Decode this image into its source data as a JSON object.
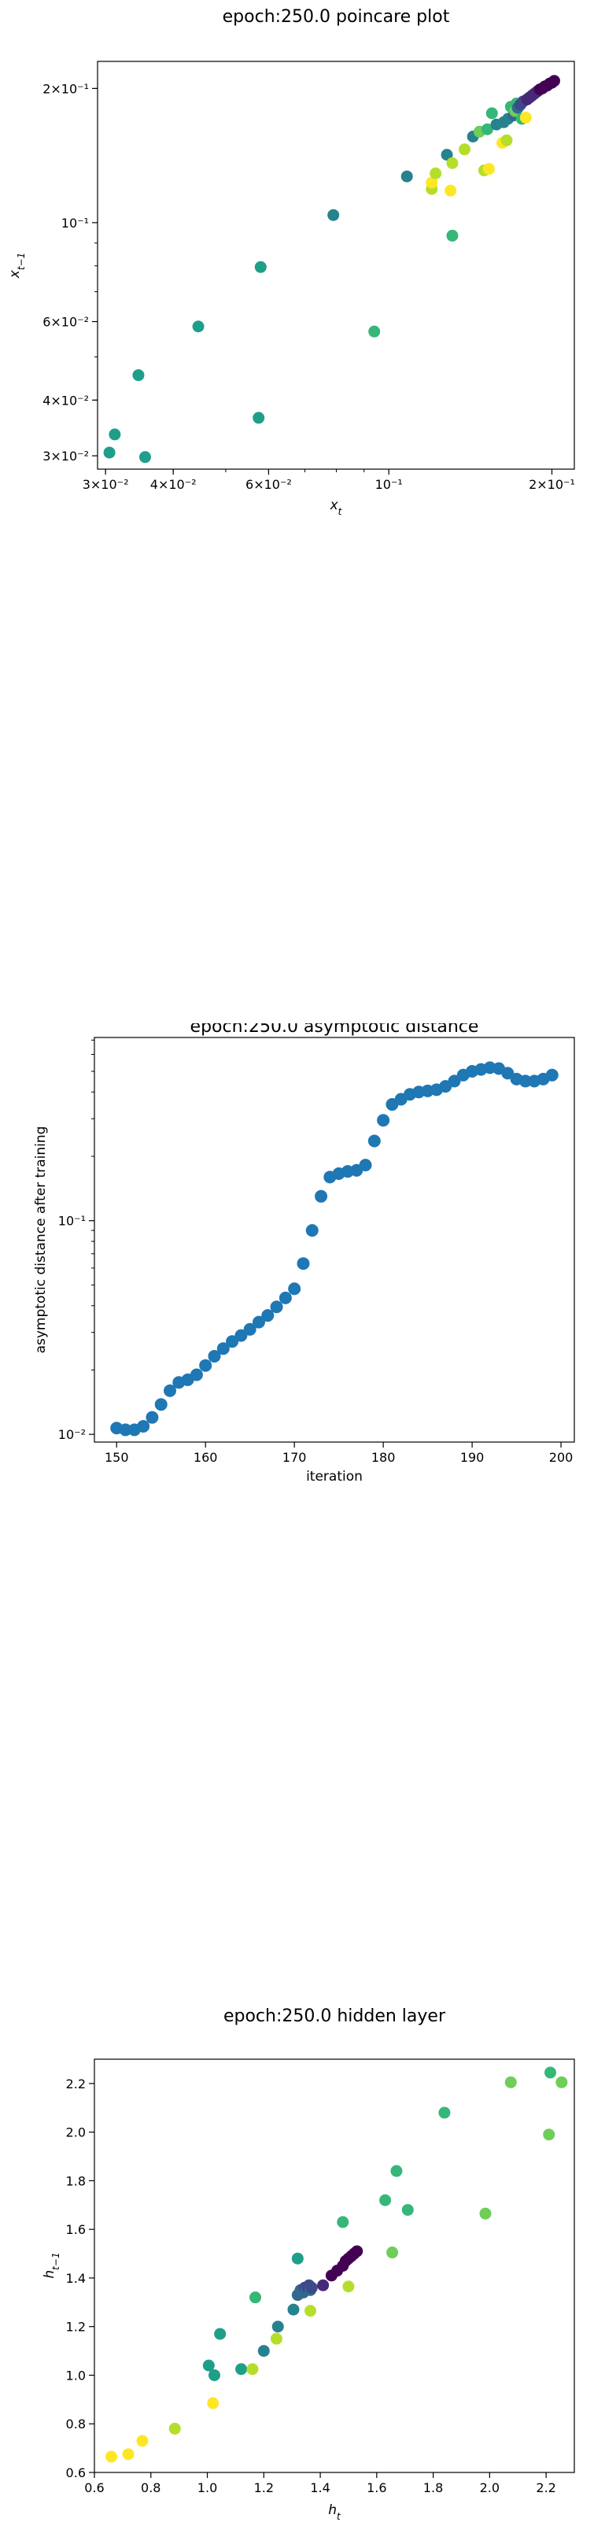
{
  "chart_data": [
    {
      "type": "scatter",
      "title": "epoch:250.0 poincare plot",
      "xlabel": "x_t",
      "ylabel": "x_{t-1}",
      "xscale": "log",
      "yscale": "log",
      "xlim": [
        0.029,
        0.22
      ],
      "ylim": [
        0.028,
        0.23
      ],
      "grid": false,
      "xtick_values": [
        0.03,
        0.04,
        0.06,
        0.1,
        0.2
      ],
      "xtick_labels": [
        "3×10⁻²",
        "4×10⁻²",
        "6×10⁻²",
        "10⁻¹",
        "2×10⁻¹"
      ],
      "ytick_values": [
        0.03,
        0.04,
        0.06,
        0.1,
        0.2
      ],
      "ytick_labels": [
        "3×10⁻²",
        "4×10⁻²",
        "6×10⁻²",
        "10⁻¹",
        "2×10⁻¹"
      ],
      "colors": [
        "#440154",
        "#482878",
        "#3e4989",
        "#31688e",
        "#26828e",
        "#1f9e89",
        "#35b779",
        "#6ece58",
        "#b5de2b",
        "#fde725"
      ],
      "points": [
        {
          "x": 0.0305,
          "y": 0.0305,
          "c": 5
        },
        {
          "x": 0.0312,
          "y": 0.0335,
          "c": 5
        },
        {
          "x": 0.0355,
          "y": 0.0298,
          "c": 5
        },
        {
          "x": 0.0345,
          "y": 0.0455,
          "c": 5
        },
        {
          "x": 0.0445,
          "y": 0.0585,
          "c": 5
        },
        {
          "x": 0.0575,
          "y": 0.0365,
          "c": 5
        },
        {
          "x": 0.058,
          "y": 0.0795,
          "c": 5
        },
        {
          "x": 0.079,
          "y": 0.104,
          "c": 4
        },
        {
          "x": 0.094,
          "y": 0.057,
          "c": 6
        },
        {
          "x": 0.108,
          "y": 0.127,
          "c": 4
        },
        {
          "x": 0.12,
          "y": 0.119,
          "c": 8
        },
        {
          "x": 0.12,
          "y": 0.123,
          "c": 9
        },
        {
          "x": 0.122,
          "y": 0.129,
          "c": 8
        },
        {
          "x": 0.128,
          "y": 0.142,
          "c": 4
        },
        {
          "x": 0.131,
          "y": 0.0935,
          "c": 6
        },
        {
          "x": 0.13,
          "y": 0.118,
          "c": 9
        },
        {
          "x": 0.131,
          "y": 0.136,
          "c": 8
        },
        {
          "x": 0.138,
          "y": 0.146,
          "c": 8
        },
        {
          "x": 0.143,
          "y": 0.156,
          "c": 4
        },
        {
          "x": 0.147,
          "y": 0.16,
          "c": 7
        },
        {
          "x": 0.152,
          "y": 0.162,
          "c": 6
        },
        {
          "x": 0.15,
          "y": 0.131,
          "c": 8
        },
        {
          "x": 0.153,
          "y": 0.132,
          "c": 9
        },
        {
          "x": 0.155,
          "y": 0.176,
          "c": 6
        },
        {
          "x": 0.158,
          "y": 0.166,
          "c": 4
        },
        {
          "x": 0.162,
          "y": 0.151,
          "c": 9
        },
        {
          "x": 0.163,
          "y": 0.168,
          "c": 4
        },
        {
          "x": 0.165,
          "y": 0.153,
          "c": 8
        },
        {
          "x": 0.166,
          "y": 0.171,
          "c": 4
        },
        {
          "x": 0.168,
          "y": 0.182,
          "c": 6
        },
        {
          "x": 0.17,
          "y": 0.174,
          "c": 3
        },
        {
          "x": 0.171,
          "y": 0.178,
          "c": 7
        },
        {
          "x": 0.172,
          "y": 0.185,
          "c": 6
        },
        {
          "x": 0.173,
          "y": 0.181,
          "c": 3
        },
        {
          "x": 0.175,
          "y": 0.184,
          "c": 2
        },
        {
          "x": 0.176,
          "y": 0.171,
          "c": 6
        },
        {
          "x": 0.177,
          "y": 0.187,
          "c": 2
        },
        {
          "x": 0.179,
          "y": 0.172,
          "c": 9
        },
        {
          "x": 0.18,
          "y": 0.189,
          "c": 1
        },
        {
          "x": 0.182,
          "y": 0.191,
          "c": 1
        },
        {
          "x": 0.184,
          "y": 0.193,
          "c": 1
        },
        {
          "x": 0.186,
          "y": 0.195,
          "c": 1
        },
        {
          "x": 0.188,
          "y": 0.197,
          "c": 1
        },
        {
          "x": 0.19,
          "y": 0.199,
          "c": 0
        },
        {
          "x": 0.192,
          "y": 0.2,
          "c": 0
        },
        {
          "x": 0.194,
          "y": 0.202,
          "c": 0
        },
        {
          "x": 0.196,
          "y": 0.203,
          "c": 0
        },
        {
          "x": 0.198,
          "y": 0.205,
          "c": 0
        },
        {
          "x": 0.2,
          "y": 0.206,
          "c": 0
        },
        {
          "x": 0.202,
          "y": 0.208,
          "c": 0
        }
      ]
    },
    {
      "type": "scatter",
      "title": "epoch:250.0 asymptotic distance",
      "xlabel": "iteration",
      "ylabel": "asymptotic distance after training",
      "xscale": "linear",
      "yscale": "log",
      "xlim": [
        147.5,
        201.5
      ],
      "ylim": [
        0.0092,
        0.72
      ],
      "grid": false,
      "xticks": [
        150,
        160,
        170,
        180,
        190,
        200
      ],
      "ytick_values": [
        0.01,
        0.1
      ],
      "ytick_labels": [
        "10⁻²",
        "10⁻¹"
      ],
      "color": "#1f77b4",
      "x": [
        150,
        151,
        152,
        153,
        154,
        155,
        156,
        157,
        158,
        159,
        160,
        161,
        162,
        163,
        164,
        165,
        166,
        167,
        168,
        169,
        170,
        171,
        172,
        173,
        174,
        175,
        176,
        177,
        178,
        179,
        180,
        181,
        182,
        183,
        184,
        185,
        186,
        187,
        188,
        189,
        190,
        191,
        192,
        193,
        194,
        195,
        196,
        197,
        198,
        199
      ],
      "y": [
        0.0107,
        0.0105,
        0.0105,
        0.0109,
        0.012,
        0.0138,
        0.016,
        0.0175,
        0.018,
        0.019,
        0.021,
        0.0232,
        0.0252,
        0.0272,
        0.029,
        0.031,
        0.0335,
        0.036,
        0.0395,
        0.0435,
        0.048,
        0.063,
        0.09,
        0.13,
        0.16,
        0.166,
        0.17,
        0.172,
        0.182,
        0.236,
        0.295,
        0.35,
        0.37,
        0.39,
        0.4,
        0.405,
        0.41,
        0.425,
        0.45,
        0.48,
        0.5,
        0.51,
        0.52,
        0.515,
        0.49,
        0.46,
        0.45,
        0.45,
        0.46,
        0.48
      ]
    },
    {
      "type": "scatter",
      "title": "epoch:250.0 hidden layer",
      "xlabel": "h_t",
      "ylabel": "h_{t-1}",
      "xscale": "linear",
      "yscale": "linear",
      "xlim": [
        0.6,
        2.3
      ],
      "ylim": [
        0.6,
        2.3
      ],
      "grid": false,
      "xticks": [
        0.6,
        0.8,
        1.0,
        1.2,
        1.4,
        1.6,
        1.8,
        2.0,
        2.2
      ],
      "xtick_labels": [
        "0.6",
        "0.8",
        "1.0",
        "1.2",
        "1.4",
        "1.6",
        "1.8",
        "2.0",
        "2.2"
      ],
      "yticks": [
        0.6,
        0.8,
        1.0,
        1.2,
        1.4,
        1.6,
        1.8,
        2.0,
        2.2
      ],
      "ytick_labels": [
        "0.6",
        "0.8",
        "1.0",
        "1.2",
        "1.4",
        "1.6",
        "1.8",
        "2.0",
        "2.2"
      ],
      "colors": [
        "#440154",
        "#482878",
        "#3e4989",
        "#31688e",
        "#26828e",
        "#1f9e89",
        "#35b779",
        "#6ece58",
        "#b5de2b",
        "#fde725"
      ],
      "points": [
        {
          "x": 0.66,
          "y": 0.665,
          "c": 9
        },
        {
          "x": 0.72,
          "y": 0.675,
          "c": 9
        },
        {
          "x": 0.77,
          "y": 0.73,
          "c": 9
        },
        {
          "x": 0.885,
          "y": 0.78,
          "c": 8
        },
        {
          "x": 1.02,
          "y": 0.885,
          "c": 9
        },
        {
          "x": 1.005,
          "y": 1.04,
          "c": 5
        },
        {
          "x": 1.025,
          "y": 1.0,
          "c": 5
        },
        {
          "x": 1.045,
          "y": 1.17,
          "c": 5
        },
        {
          "x": 1.12,
          "y": 1.025,
          "c": 5
        },
        {
          "x": 1.16,
          "y": 1.025,
          "c": 8
        },
        {
          "x": 1.17,
          "y": 1.32,
          "c": 6
        },
        {
          "x": 1.2,
          "y": 1.1,
          "c": 4
        },
        {
          "x": 1.245,
          "y": 1.15,
          "c": 8
        },
        {
          "x": 1.25,
          "y": 1.2,
          "c": 4
        },
        {
          "x": 1.305,
          "y": 1.27,
          "c": 4
        },
        {
          "x": 1.32,
          "y": 1.48,
          "c": 5
        },
        {
          "x": 1.32,
          "y": 1.33,
          "c": 3
        },
        {
          "x": 1.33,
          "y": 1.35,
          "c": 3
        },
        {
          "x": 1.34,
          "y": 1.34,
          "c": 3
        },
        {
          "x": 1.345,
          "y": 1.36,
          "c": 2
        },
        {
          "x": 1.35,
          "y": 1.35,
          "c": 3
        },
        {
          "x": 1.355,
          "y": 1.36,
          "c": 2
        },
        {
          "x": 1.36,
          "y": 1.37,
          "c": 2
        },
        {
          "x": 1.365,
          "y": 1.265,
          "c": 8
        },
        {
          "x": 1.365,
          "y": 1.35,
          "c": 3
        },
        {
          "x": 1.37,
          "y": 1.36,
          "c": 2
        },
        {
          "x": 1.41,
          "y": 1.37,
          "c": 1
        },
        {
          "x": 1.44,
          "y": 1.41,
          "c": 0
        },
        {
          "x": 1.46,
          "y": 1.43,
          "c": 0
        },
        {
          "x": 1.48,
          "y": 1.45,
          "c": 0
        },
        {
          "x": 1.49,
          "y": 1.47,
          "c": 0
        },
        {
          "x": 1.5,
          "y": 1.48,
          "c": 0
        },
        {
          "x": 1.51,
          "y": 1.49,
          "c": 0
        },
        {
          "x": 1.52,
          "y": 1.5,
          "c": 0
        },
        {
          "x": 1.53,
          "y": 1.51,
          "c": 0
        },
        {
          "x": 1.48,
          "y": 1.63,
          "c": 6
        },
        {
          "x": 1.5,
          "y": 1.365,
          "c": 8
        },
        {
          "x": 1.63,
          "y": 1.72,
          "c": 6
        },
        {
          "x": 1.655,
          "y": 1.505,
          "c": 7
        },
        {
          "x": 1.67,
          "y": 1.84,
          "c": 6
        },
        {
          "x": 1.71,
          "y": 1.68,
          "c": 6
        },
        {
          "x": 1.84,
          "y": 2.08,
          "c": 6
        },
        {
          "x": 1.985,
          "y": 1.665,
          "c": 7
        },
        {
          "x": 2.075,
          "y": 2.205,
          "c": 7
        },
        {
          "x": 2.21,
          "y": 1.99,
          "c": 7
        },
        {
          "x": 2.215,
          "y": 2.245,
          "c": 6
        },
        {
          "x": 2.255,
          "y": 2.205,
          "c": 7
        }
      ]
    }
  ]
}
